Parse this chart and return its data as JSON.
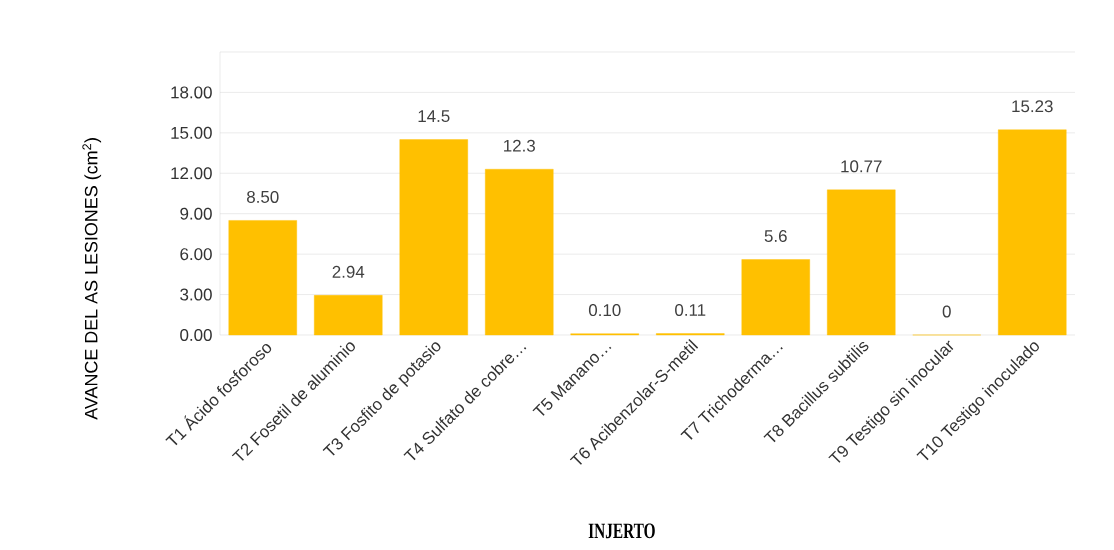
{
  "chart_data": {
    "type": "bar",
    "xlabel": "INJERTO",
    "ylabel": "AVANCE DEL AS LESIONES (cm$^{2}$)",
    "categories": [
      "T1 Ácido fosforoso",
      "T2 Fosetil de aluminio",
      "T3 Fosfito de potasio",
      "T4 Sulfato de cobre…",
      "T5 Manano…",
      "T6 Acibenzolar-S-metil",
      "T7 Trichoderma…",
      "T8 Bacillus subtilis",
      "T9 Testigo sin inocular",
      "T10 Testigo inoculado"
    ],
    "values": [
      8.5,
      2.94,
      14.5,
      12.3,
      0.1,
      0.11,
      5.6,
      10.77,
      0,
      15.23
    ],
    "value_labels": [
      "8.50",
      "2.94",
      "14.5",
      "12.3",
      "0.10",
      "0.11",
      "5.6",
      "10.77",
      "0",
      "15.23"
    ],
    "color": "#ffc000",
    "ylim": [
      0,
      21
    ],
    "yticks": [
      {
        "value": 0,
        "label": "0.00"
      },
      {
        "value": 3,
        "label": "3.00"
      },
      {
        "value": 6,
        "label": "6.00"
      },
      {
        "value": 9,
        "label": "9.00"
      },
      {
        "value": 12,
        "label": "12.00"
      },
      {
        "value": 15,
        "label": "15.00"
      },
      {
        "value": 18,
        "label": "18.00"
      }
    ],
    "grid": "y"
  }
}
